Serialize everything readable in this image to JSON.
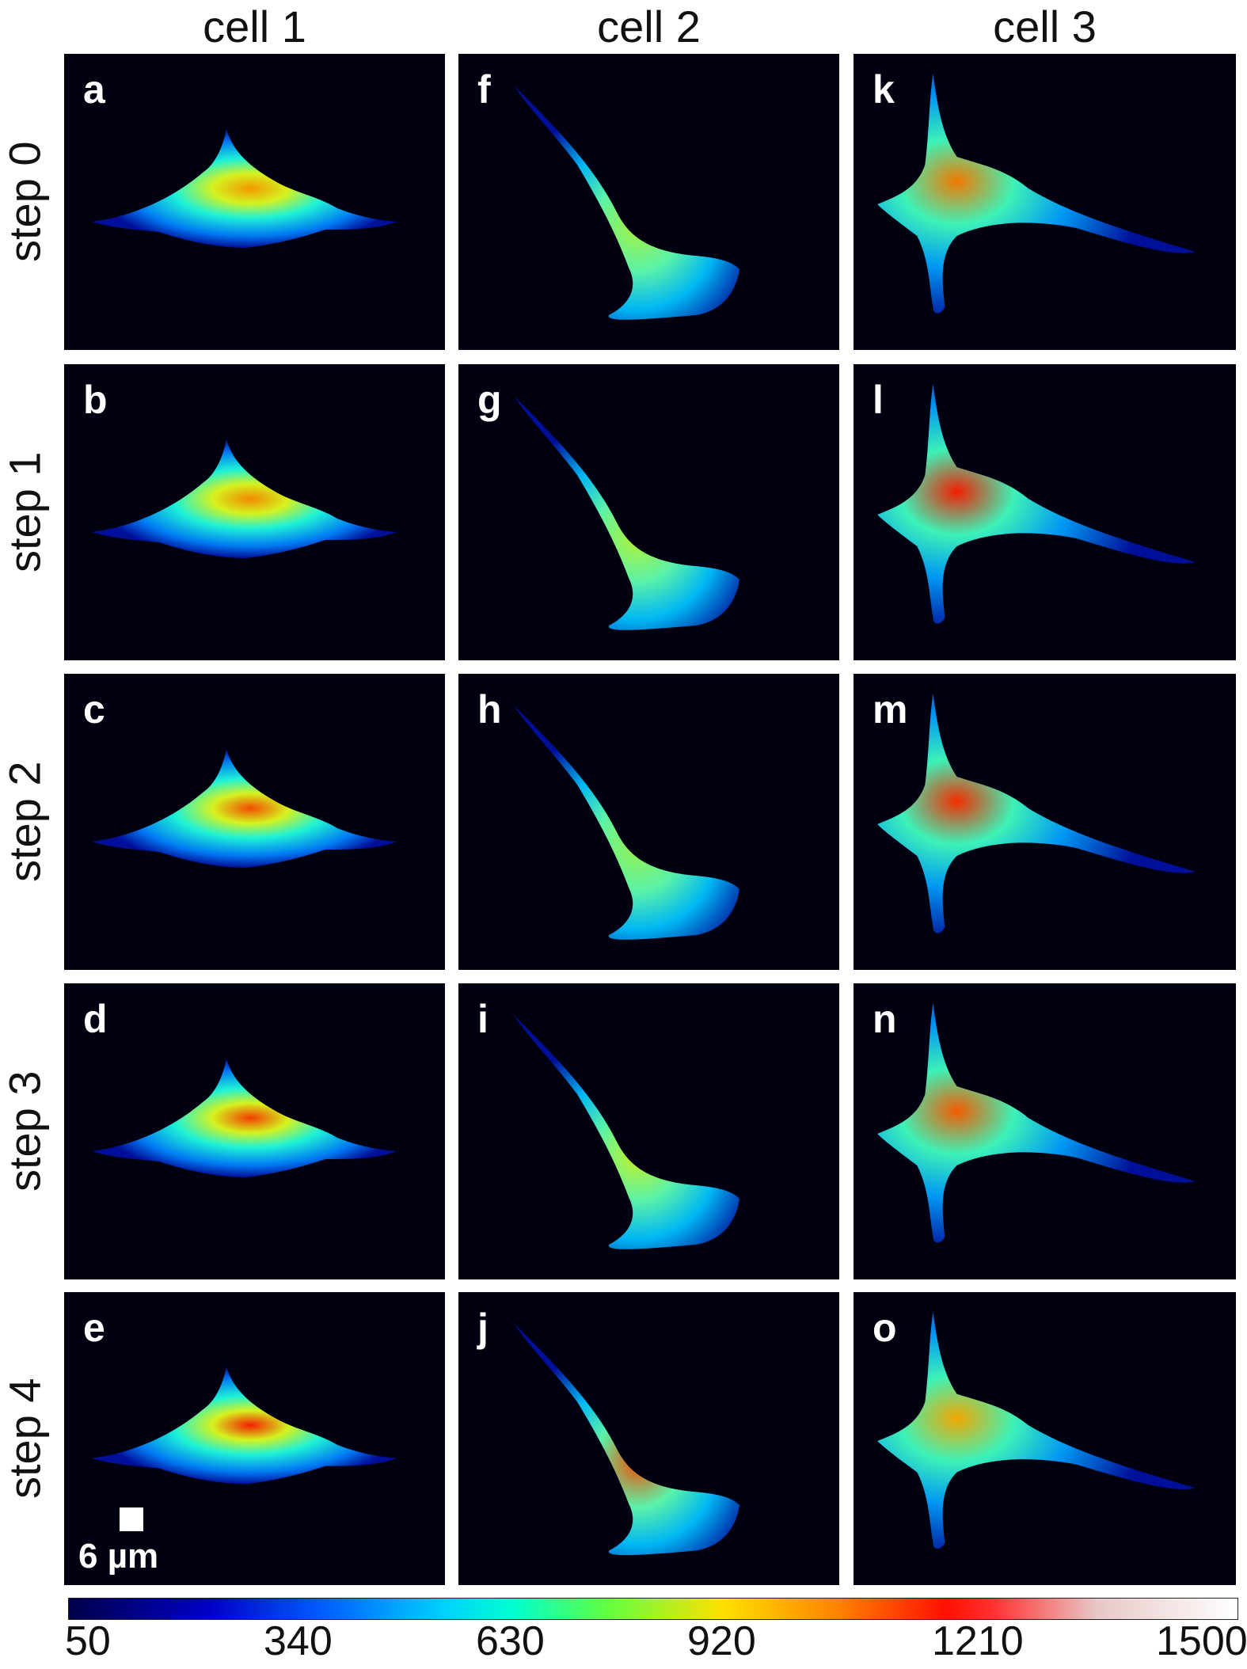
{
  "columns": [
    "cell 1",
    "cell 2",
    "cell 3"
  ],
  "rows": [
    "step 0",
    "step 1",
    "step 2",
    "step 3",
    "step 4"
  ],
  "panel_letters": [
    [
      "a",
      "f",
      "k"
    ],
    [
      "b",
      "g",
      "l"
    ],
    [
      "c",
      "h",
      "m"
    ],
    [
      "d",
      "i",
      "n"
    ],
    [
      "e",
      "j",
      "o"
    ]
  ],
  "scale_bar": {
    "label": "6 µm"
  },
  "colorbar": {
    "colormap": "jet-like, dark navy to white",
    "ticks": [
      "50",
      "340",
      "630",
      "920",
      "1210",
      "1500"
    ],
    "min": 50,
    "max": 1500
  }
}
